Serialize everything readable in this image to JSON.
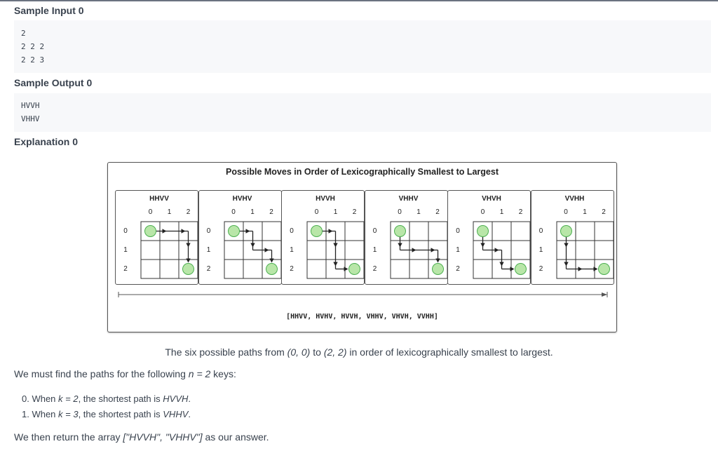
{
  "sample_input": {
    "heading": "Sample Input 0",
    "lines": [
      "2",
      "2 2 2",
      "2 2 3"
    ]
  },
  "sample_output": {
    "heading": "Sample Output 0",
    "lines": [
      "HVVH",
      "VHHV"
    ]
  },
  "explanation": {
    "heading": "Explanation 0",
    "figure": {
      "title": "Possible Moves in Order of Lexicographically Smallest to Largest",
      "col_labels": [
        "0",
        "1",
        "2"
      ],
      "row_labels": [
        "0",
        "1",
        "2"
      ],
      "panels": [
        {
          "label": "HHVV",
          "path": "HHVV"
        },
        {
          "label": "HVHV",
          "path": "HVHV"
        },
        {
          "label": "HVVH",
          "path": "HVVH"
        },
        {
          "label": "VHHV",
          "path": "VHHV"
        },
        {
          "label": "VHVH",
          "path": "VHVH"
        },
        {
          "label": "VVHH",
          "path": "VVHH"
        }
      ],
      "array_label": "[HHVV, HVHV, HVVH, VHHV, VHVH, VVHH]",
      "colors": {
        "endpoint_fill": "#b8e6a8",
        "endpoint_stroke": "#4caf50",
        "line": "#222222"
      }
    },
    "caption": {
      "pre": "The six possible paths from ",
      "from": "(0, 0)",
      "mid": " to ",
      "to": "(2, 2)",
      "post": " in order of lexicographically smallest to largest."
    },
    "find_text": {
      "pre": "We must find the paths for the following ",
      "n": "n = 2",
      "post": " keys:"
    },
    "items": [
      {
        "num": "0. When ",
        "k": "k = 2",
        "mid": ", the shortest path is ",
        "path": "HVVH",
        "end": "."
      },
      {
        "num": "1. When ",
        "k": "k = 3",
        "mid": ", the shortest path is ",
        "path": "VHHV",
        "end": "."
      }
    ],
    "return_text": {
      "pre": "We then return the array ",
      "array": "[\"HVVH\", \"VHHV\"]",
      "post": " as our answer."
    }
  }
}
